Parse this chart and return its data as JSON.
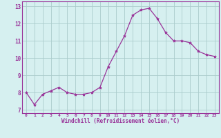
{
  "x": [
    0,
    1,
    2,
    3,
    4,
    5,
    6,
    7,
    8,
    9,
    10,
    11,
    12,
    13,
    14,
    15,
    16,
    17,
    18,
    19,
    20,
    21,
    22,
    23
  ],
  "y": [
    8.0,
    7.3,
    7.9,
    8.1,
    8.3,
    8.0,
    7.9,
    7.9,
    8.0,
    8.3,
    9.5,
    10.4,
    11.3,
    12.5,
    12.8,
    12.9,
    12.3,
    11.5,
    11.0,
    11.0,
    10.9,
    10.4,
    10.2,
    10.1
  ],
  "line_color": "#993399",
  "marker": "*",
  "marker_size": 3,
  "bg_color": "#d6f0f0",
  "grid_color": "#aacccc",
  "xlabel": "Windchill (Refroidissement éolien,°C)",
  "xlabel_color": "#993399",
  "tick_color": "#993399",
  "ylabel_ticks": [
    7,
    8,
    9,
    10,
    11,
    12,
    13
  ],
  "xlim": [
    -0.5,
    23.5
  ],
  "ylim": [
    6.8,
    13.3
  ],
  "spine_color": "#993399"
}
